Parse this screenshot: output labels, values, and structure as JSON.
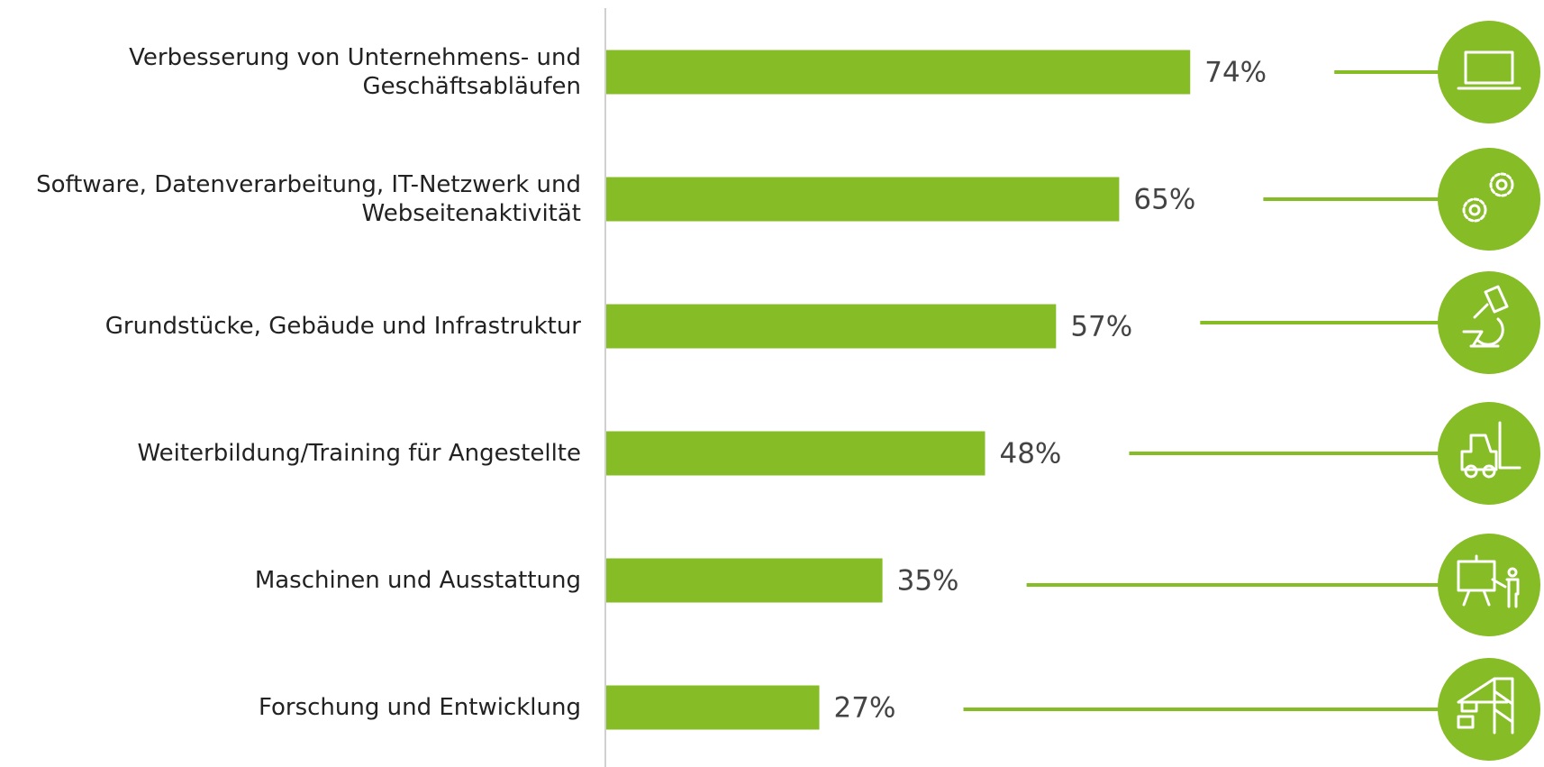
{
  "chart_data": {
    "type": "bar",
    "orientation": "horizontal",
    "categories": [
      "Verbesserung von Unternehmens- und\nGeschäftsabläufen",
      "Software, Datenverarbeitung, IT-Netzwerk und\nWebseitenaktivität",
      "Grundstücke, Gebäude und Infrastruktur",
      "Weiterbildung/Training für Angestellte",
      "Maschinen und Ausstattung",
      "Forschung und Entwicklung"
    ],
    "values": [
      74,
      65,
      57,
      48,
      35,
      27
    ],
    "value_labels": [
      "74%",
      "65%",
      "57%",
      "48%",
      "35%",
      "27%"
    ],
    "color": "#86bc25"
  }
}
